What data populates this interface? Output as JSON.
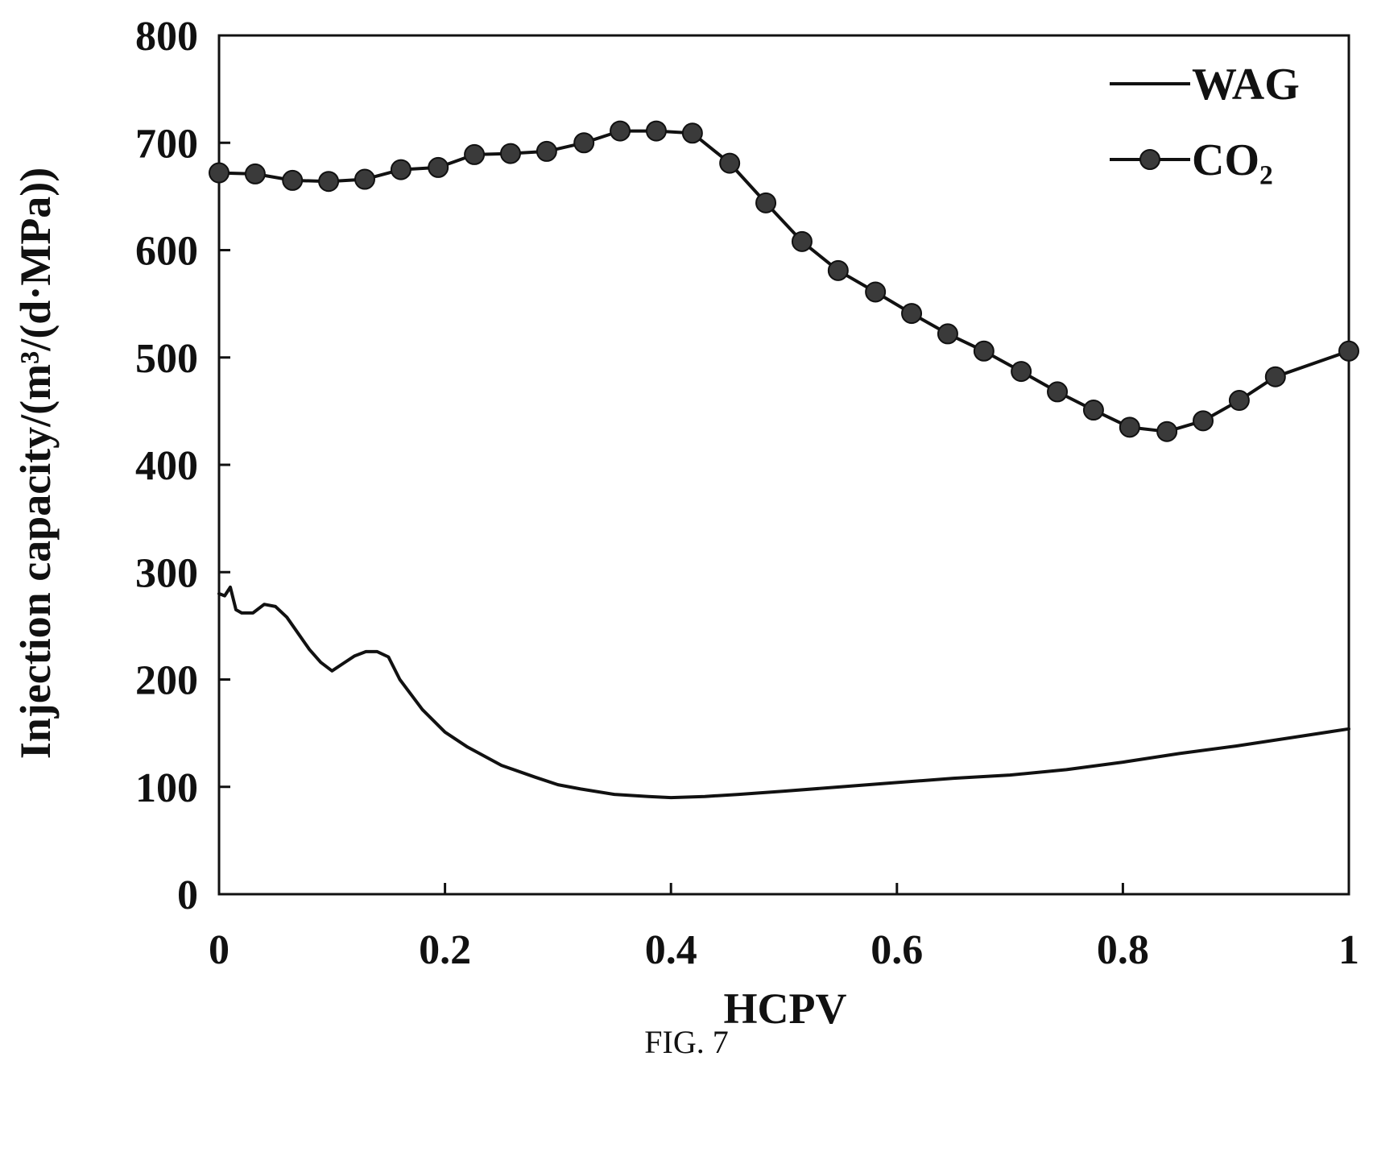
{
  "caption": "FIG. 7",
  "chart_data": {
    "type": "line",
    "xlabel": "HCPV",
    "ylabel": "Injection capacity/(m³/(d·MPa))",
    "xlim": [
      0,
      1
    ],
    "ylim": [
      0,
      800
    ],
    "x_ticks": [
      "0",
      "0.2",
      "0.4",
      "0.6",
      "0.8",
      "1"
    ],
    "y_ticks": [
      "0",
      "100",
      "200",
      "300",
      "400",
      "500",
      "600",
      "700",
      "800"
    ],
    "grid": false,
    "legend_position": "top-right",
    "series": [
      {
        "name": "WAG",
        "marker": "none",
        "x": [
          0,
          0.005,
          0.01,
          0.015,
          0.02,
          0.03,
          0.04,
          0.05,
          0.06,
          0.07,
          0.08,
          0.09,
          0.1,
          0.11,
          0.12,
          0.13,
          0.14,
          0.15,
          0.16,
          0.18,
          0.2,
          0.22,
          0.25,
          0.28,
          0.3,
          0.32,
          0.35,
          0.38,
          0.4,
          0.43,
          0.46,
          0.5,
          0.55,
          0.6,
          0.65,
          0.7,
          0.75,
          0.8,
          0.85,
          0.9,
          0.95,
          1.0
        ],
        "y": [
          280,
          278,
          286,
          265,
          262,
          262,
          270,
          268,
          258,
          243,
          228,
          216,
          208,
          215,
          222,
          226,
          226,
          221,
          200,
          172,
          151,
          137,
          120,
          109,
          102,
          98,
          93,
          91,
          90,
          91,
          93,
          96,
          100,
          104,
          108,
          111,
          116,
          123,
          131,
          138,
          146,
          154
        ]
      },
      {
        "name": "CO₂",
        "marker": "circle",
        "x": [
          0,
          0.032,
          0.065,
          0.097,
          0.129,
          0.161,
          0.194,
          0.226,
          0.258,
          0.29,
          0.323,
          0.355,
          0.387,
          0.419,
          0.452,
          0.484,
          0.516,
          0.548,
          0.581,
          0.613,
          0.645,
          0.677,
          0.71,
          0.742,
          0.774,
          0.806,
          0.839,
          0.871,
          0.903,
          0.935,
          1.0
        ],
        "y": [
          672,
          671,
          665,
          664,
          666,
          675,
          677,
          689,
          690,
          692,
          700,
          711,
          711,
          709,
          681,
          644,
          608,
          581,
          561,
          541,
          522,
          506,
          487,
          468,
          451,
          435,
          431,
          441,
          460,
          482,
          506
        ]
      }
    ]
  }
}
